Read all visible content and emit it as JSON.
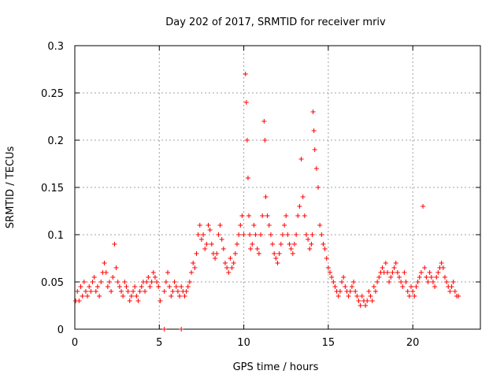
{
  "chart_data": {
    "type": "scatter",
    "title": "Day 202 of 2017, SRMTID for receiver mriv",
    "xlabel": "GPS time / hours",
    "ylabel": "SRMTID / TECUs",
    "xlim": [
      0,
      24
    ],
    "ylim": [
      0,
      0.3
    ],
    "x_ticks": [
      0,
      5,
      10,
      15,
      20
    ],
    "x_tick_labels": [
      "0",
      "5",
      "10",
      "15",
      "20"
    ],
    "y_ticks": [
      0,
      0.05,
      0.1,
      0.15,
      0.2,
      0.25,
      0.3
    ],
    "y_tick_labels": [
      "0",
      "0.05",
      "0.1",
      "0.15",
      "0.2",
      "0.25",
      "0.3"
    ],
    "grid": true,
    "marker": "+",
    "series": [
      {
        "name": "SRMTID",
        "color": "#ff0000",
        "x": [
          0.05,
          0.15,
          0.25,
          0.35,
          0.45,
          0.55,
          0.65,
          0.75,
          0.85,
          0.95,
          1.05,
          1.15,
          1.25,
          1.35,
          1.45,
          1.55,
          1.65,
          1.75,
          1.85,
          1.95,
          2.05,
          2.15,
          2.25,
          2.35,
          2.45,
          2.55,
          2.65,
          2.75,
          2.85,
          2.95,
          3.05,
          3.15,
          3.25,
          3.35,
          3.45,
          3.55,
          3.65,
          3.75,
          3.85,
          3.95,
          4.05,
          4.15,
          4.25,
          4.35,
          4.45,
          4.55,
          4.65,
          4.75,
          4.85,
          4.95,
          5.05,
          5.3,
          5.4,
          5.5,
          5.6,
          5.7,
          5.8,
          5.9,
          6.0,
          6.1,
          6.2,
          6.3,
          6.4,
          6.5,
          6.6,
          6.7,
          6.8,
          6.9,
          7.0,
          7.1,
          7.2,
          7.3,
          7.4,
          7.5,
          7.6,
          7.7,
          7.8,
          7.9,
          8.0,
          8.1,
          8.2,
          8.3,
          8.4,
          8.5,
          8.6,
          8.7,
          8.8,
          8.9,
          9.0,
          9.1,
          9.2,
          9.3,
          9.4,
          9.5,
          9.6,
          9.7,
          9.8,
          9.9,
          10.0,
          10.1,
          10.15,
          10.2,
          10.25,
          10.3,
          10.35,
          10.4,
          10.5,
          10.6,
          10.7,
          10.8,
          10.9,
          11.0,
          11.1,
          11.2,
          11.25,
          11.3,
          11.4,
          11.5,
          11.6,
          11.7,
          11.8,
          11.9,
          12.0,
          12.1,
          12.2,
          12.3,
          12.4,
          12.5,
          12.6,
          12.7,
          12.8,
          12.9,
          13.0,
          13.1,
          13.2,
          13.3,
          13.4,
          13.5,
          13.6,
          13.7,
          13.8,
          13.9,
          14.0,
          14.05,
          14.1,
          14.15,
          14.2,
          14.3,
          14.4,
          14.5,
          14.6,
          14.7,
          14.8,
          14.9,
          15.0,
          15.1,
          15.2,
          15.3,
          15.4,
          15.5,
          15.6,
          15.7,
          15.8,
          15.9,
          16.0,
          16.1,
          16.2,
          16.3,
          16.4,
          16.5,
          16.6,
          16.7,
          16.8,
          16.9,
          17.0,
          17.1,
          17.2,
          17.3,
          17.4,
          17.5,
          17.6,
          17.7,
          17.8,
          17.9,
          18.0,
          18.1,
          18.2,
          18.3,
          18.4,
          18.5,
          18.6,
          18.7,
          18.8,
          18.9,
          19.0,
          19.1,
          19.2,
          19.3,
          19.4,
          19.5,
          19.6,
          19.7,
          19.8,
          19.9,
          20.0,
          20.1,
          20.2,
          20.3,
          20.4,
          20.5,
          20.6,
          20.7,
          20.8,
          20.9,
          21.0,
          21.1,
          21.2,
          21.3,
          21.4,
          21.5,
          21.6,
          21.7,
          21.8,
          21.9,
          22.0,
          22.1,
          22.2,
          22.3,
          22.4,
          22.5,
          22.6,
          22.7,
          5.3,
          6.3
        ],
        "y": [
          0.03,
          0.04,
          0.03,
          0.045,
          0.035,
          0.05,
          0.04,
          0.035,
          0.045,
          0.04,
          0.05,
          0.055,
          0.04,
          0.045,
          0.035,
          0.05,
          0.06,
          0.07,
          0.06,
          0.045,
          0.05,
          0.04,
          0.055,
          0.09,
          0.065,
          0.05,
          0.045,
          0.04,
          0.035,
          0.05,
          0.045,
          0.04,
          0.03,
          0.035,
          0.04,
          0.045,
          0.035,
          0.03,
          0.04,
          0.045,
          0.05,
          0.04,
          0.05,
          0.055,
          0.045,
          0.05,
          0.06,
          0.055,
          0.05,
          0.045,
          0.03,
          0.04,
          0.05,
          0.06,
          0.045,
          0.035,
          0.04,
          0.05,
          0.045,
          0.04,
          0.035,
          0.045,
          0.04,
          0.035,
          0.04,
          0.045,
          0.05,
          0.06,
          0.07,
          0.065,
          0.08,
          0.1,
          0.11,
          0.095,
          0.1,
          0.085,
          0.09,
          0.11,
          0.105,
          0.09,
          0.08,
          0.075,
          0.08,
          0.1,
          0.11,
          0.095,
          0.085,
          0.07,
          0.065,
          0.06,
          0.075,
          0.065,
          0.07,
          0.08,
          0.09,
          0.1,
          0.11,
          0.12,
          0.1,
          0.27,
          0.24,
          0.2,
          0.16,
          0.12,
          0.1,
          0.085,
          0.09,
          0.11,
          0.1,
          0.085,
          0.08,
          0.1,
          0.12,
          0.22,
          0.2,
          0.14,
          0.12,
          0.11,
          0.1,
          0.09,
          0.08,
          0.075,
          0.07,
          0.08,
          0.09,
          0.1,
          0.11,
          0.12,
          0.1,
          0.09,
          0.085,
          0.08,
          0.09,
          0.1,
          0.12,
          0.13,
          0.18,
          0.14,
          0.12,
          0.1,
          0.095,
          0.085,
          0.09,
          0.1,
          0.23,
          0.21,
          0.19,
          0.17,
          0.15,
          0.11,
          0.1,
          0.09,
          0.085,
          0.075,
          0.065,
          0.06,
          0.055,
          0.05,
          0.045,
          0.04,
          0.035,
          0.04,
          0.05,
          0.055,
          0.045,
          0.04,
          0.035,
          0.04,
          0.045,
          0.05,
          0.04,
          0.035,
          0.03,
          0.025,
          0.035,
          0.03,
          0.025,
          0.03,
          0.04,
          0.035,
          0.03,
          0.045,
          0.04,
          0.05,
          0.055,
          0.06,
          0.065,
          0.06,
          0.07,
          0.06,
          0.05,
          0.055,
          0.06,
          0.065,
          0.07,
          0.06,
          0.055,
          0.05,
          0.045,
          0.06,
          0.05,
          0.04,
          0.035,
          0.045,
          0.04,
          0.035,
          0.045,
          0.05,
          0.055,
          0.06,
          0.13,
          0.065,
          0.055,
          0.05,
          0.06,
          0.055,
          0.05,
          0.045,
          0.055,
          0.06,
          0.065,
          0.07,
          0.065,
          0.055,
          0.05,
          0.045,
          0.04,
          0.045,
          0.05,
          0.04,
          0.035,
          0.035,
          0,
          0
        ]
      }
    ]
  }
}
